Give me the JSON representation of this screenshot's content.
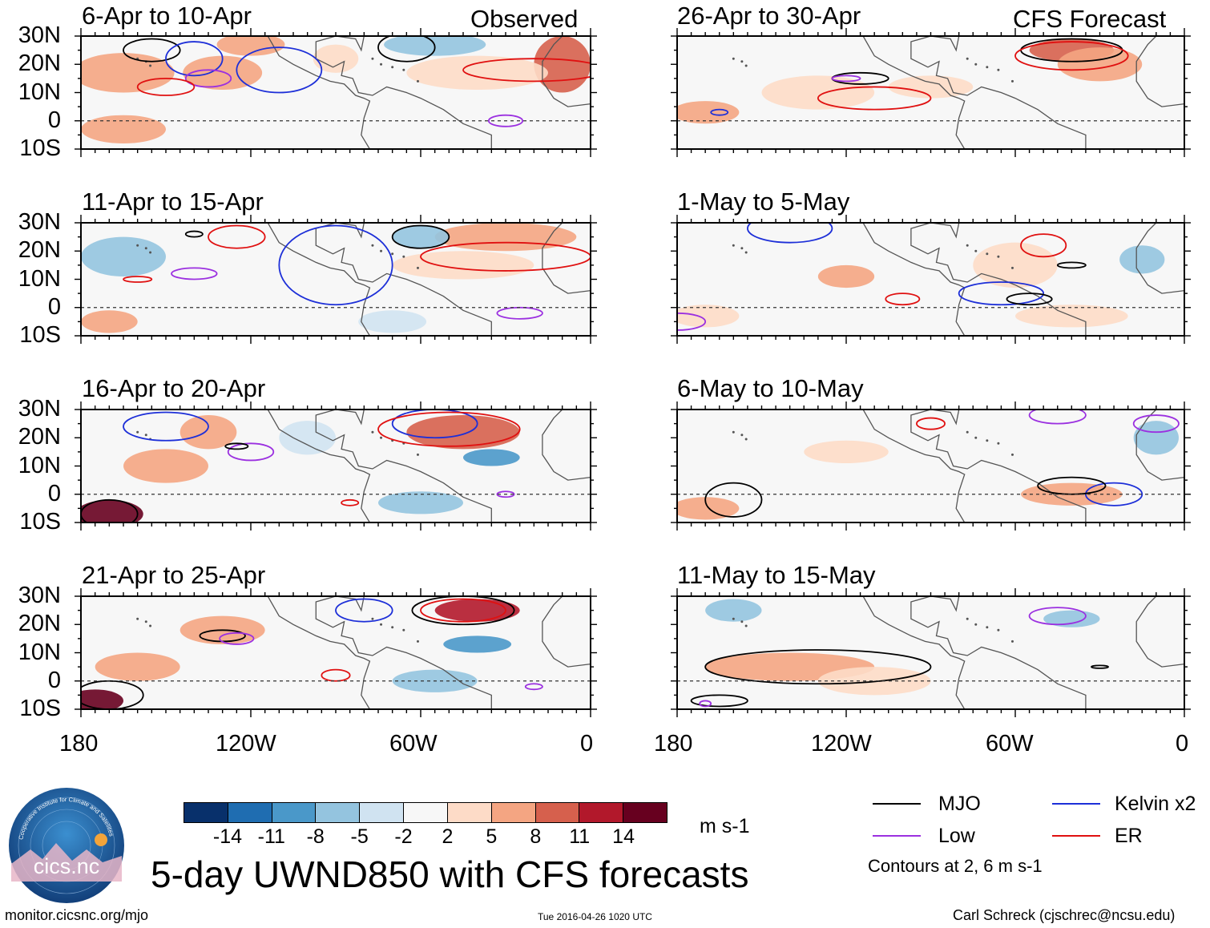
{
  "figure": {
    "title": "5-day UWND850 with CFS forecasts",
    "observed_label": "Observed",
    "forecast_label": "CFS Forecast",
    "footer_left": "monitor.cicsnc.org/mjo",
    "footer_center": "Tue 2016-04-26 1020 UTC",
    "footer_right": "Carl Schreck (cjschrec@ncsu.edu)",
    "logo_text": "cics.nc",
    "logo_ring_text": "Cooperative Institute for Climate and Satellites"
  },
  "chart_data": {
    "type": "map-panels",
    "variable": "850-hPa zonal wind anomaly",
    "units": "m s-1",
    "lat_ticks": [
      "30N",
      "20N",
      "10N",
      "0",
      "10S"
    ],
    "lon_ticks": [
      "180",
      "120W",
      "60W",
      "0"
    ],
    "lat_range": [
      -10,
      30
    ],
    "lon_range": [
      -180,
      0
    ],
    "colorbar": {
      "labels": [
        "-14",
        "-11",
        "-8",
        "-5",
        "-2",
        "2",
        "5",
        "8",
        "11",
        "14"
      ],
      "colors": [
        "#08306b",
        "#1f6db1",
        "#4a98c9",
        "#94c4df",
        "#d0e3f1",
        "#f7f7f7",
        "#fddbc7",
        "#f4a582",
        "#d6604d",
        "#b2182b",
        "#67001f"
      ],
      "units_label": "m s-1"
    },
    "legend": {
      "items": [
        {
          "name": "MJO",
          "color": "#000000"
        },
        {
          "name": "Kelvin x2",
          "color": "#1d2fd8"
        },
        {
          "name": "Low",
          "color": "#9b30e0"
        },
        {
          "name": "ER",
          "color": "#e01010"
        }
      ],
      "note": "Contours at 2, 6 m s-1"
    },
    "panels": [
      {
        "id": "obs1",
        "title": "6-Apr to 10-Apr",
        "column": "Observed"
      },
      {
        "id": "obs2",
        "title": "11-Apr to 15-Apr",
        "column": "Observed"
      },
      {
        "id": "obs3",
        "title": "16-Apr to 20-Apr",
        "column": "Observed"
      },
      {
        "id": "obs4",
        "title": "21-Apr to 25-Apr",
        "column": "Observed"
      },
      {
        "id": "fc1",
        "title": "26-Apr to 30-Apr",
        "column": "CFS Forecast"
      },
      {
        "id": "fc2",
        "title": "1-May to 5-May",
        "column": "CFS Forecast"
      },
      {
        "id": "fc3",
        "title": "6-May to 10-May",
        "column": "CFS Forecast"
      },
      {
        "id": "fc4",
        "title": "11-May to 15-May",
        "column": "CFS Forecast"
      }
    ]
  }
}
